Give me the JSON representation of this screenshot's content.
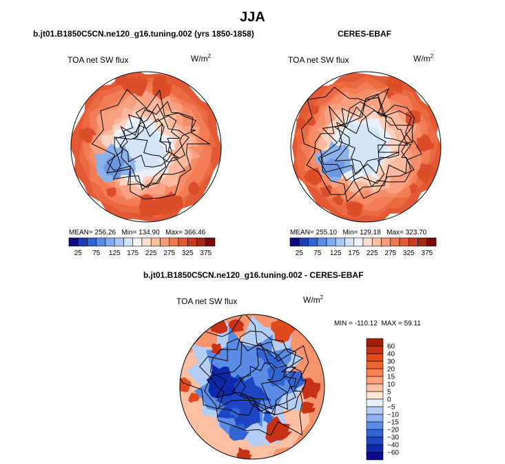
{
  "header": {
    "title": "JJA"
  },
  "panels": [
    {
      "title": "b.jt01.B1850C5CN.ne120_g16.tuning.002 (yrs 1850-1858)",
      "variable": "TOA net SW flux",
      "units": "W/m",
      "units_exp": "2",
      "stats": {
        "mean_label": "MEAN=",
        "mean": "256.26",
        "min_label": "Min=",
        "min": "134.90",
        "max_label": "Max=",
        "max": "366.46"
      }
    },
    {
      "title": "CERES-EBAF",
      "variable": "TOA net SW flux",
      "units": "W/m",
      "units_exp": "2",
      "stats": {
        "mean_label": "MEAN=",
        "mean": "255.10",
        "min_label": "Min=",
        "min": "129.18",
        "max_label": "Max=",
        "max": "323.70"
      }
    },
    {
      "title": "b.jt01.B1850C5CN.ne120_g16.tuning.002 - CERES-EBAF",
      "variable": "TOA net SW flux",
      "units": "W/m",
      "units_exp": "2",
      "stats": {
        "min_label": "MIN =",
        "min": "-110.12",
        "max_label": "MAX =",
        "max": "59.11"
      }
    }
  ],
  "chart_data": [
    {
      "type": "heatmap",
      "projection": "north-polar-stereographic",
      "title": "b.jt01.B1850C5CN.ne120_g16.tuning.002 (yrs 1850-1858)",
      "variable": "TOA net SW flux",
      "units": "W/m2",
      "mean": 256.26,
      "min": 134.9,
      "max": 366.46,
      "levels": [
        25,
        50,
        75,
        100,
        125,
        150,
        175,
        200,
        225,
        250,
        275,
        300,
        325,
        350,
        375
      ],
      "colorbar_tick_labels": [
        "25",
        "75",
        "125",
        "175",
        "225",
        "275",
        "325",
        "375"
      ],
      "colorbar_colors": [
        "#0c0c80",
        "#1e3cb4",
        "#3264d2",
        "#5a8ce6",
        "#82aaf0",
        "#aac8f5",
        "#d2e4fa",
        "#f0f4fa",
        "#fde0d2",
        "#fbbca0",
        "#f79a78",
        "#f07850",
        "#e05a32",
        "#c83c1e",
        "#a02814",
        "#780a0a"
      ],
      "colorbar_position": "bottom"
    },
    {
      "type": "heatmap",
      "projection": "north-polar-stereographic",
      "title": "CERES-EBAF",
      "variable": "TOA net SW flux",
      "units": "W/m2",
      "mean": 255.1,
      "min": 129.18,
      "max": 323.7,
      "levels": [
        25,
        50,
        75,
        100,
        125,
        150,
        175,
        200,
        225,
        250,
        275,
        300,
        325,
        350,
        375
      ],
      "colorbar_tick_labels": [
        "25",
        "75",
        "125",
        "175",
        "225",
        "275",
        "325",
        "375"
      ],
      "colorbar_colors": [
        "#0c0c80",
        "#1e3cb4",
        "#3264d2",
        "#5a8ce6",
        "#82aaf0",
        "#aac8f5",
        "#d2e4fa",
        "#f0f4fa",
        "#fde0d2",
        "#fbbca0",
        "#f79a78",
        "#f07850",
        "#e05a32",
        "#c83c1e",
        "#a02814",
        "#780a0a"
      ],
      "colorbar_position": "bottom"
    },
    {
      "type": "heatmap",
      "projection": "north-polar-stereographic",
      "title": "b.jt01.B1850C5CN.ne120_g16.tuning.002 - CERES-EBAF",
      "variable": "TOA net SW flux",
      "units": "W/m2",
      "min": -110.12,
      "max": 59.11,
      "levels": [
        -60,
        -40,
        -30,
        -20,
        -15,
        -10,
        -5,
        0,
        5,
        10,
        15,
        20,
        30,
        40,
        60
      ],
      "colorbar_tick_labels": [
        "60",
        "40",
        "30",
        "20",
        "15",
        "10",
        "5",
        "0",
        "−5",
        "−10",
        "−15",
        "−20",
        "−30",
        "−40",
        "−60"
      ],
      "colorbar_colors": [
        "#a01e0a",
        "#c83214",
        "#e04b1e",
        "#f06432",
        "#f78250",
        "#fba078",
        "#fcc3a5",
        "#fde6d7",
        "#e6f0fa",
        "#b4cdf5",
        "#8cb0f0",
        "#5a8ce6",
        "#3264d2",
        "#1e46c3",
        "#0f28aa",
        "#0a0a8c"
      ],
      "colorbar_position": "right"
    }
  ]
}
